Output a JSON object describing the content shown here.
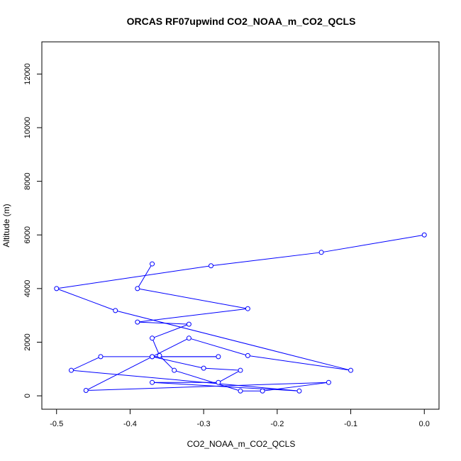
{
  "chart_data": {
    "type": "line",
    "title": "ORCAS RF07upwind CO2_NOAA_m_CO2_QCLS",
    "xlabel": "CO2_NOAA_m_CO2_QCLS",
    "ylabel": "Altitude (m)",
    "xlim": [
      -0.52,
      0.02
    ],
    "ylim": [
      -500,
      13200
    ],
    "xticks": [
      -0.5,
      -0.4,
      -0.3,
      -0.2,
      -0.1,
      0.0
    ],
    "xtick_labels": [
      "-0.5",
      "-0.4",
      "-0.3",
      "-0.2",
      "-0.1",
      "0.0"
    ],
    "yticks": [
      0,
      2000,
      4000,
      6000,
      8000,
      10000,
      12000
    ],
    "ytick_labels": [
      "0",
      "2000",
      "4000",
      "6000",
      "8000",
      "10000",
      "12000"
    ],
    "grid": false,
    "series": [
      {
        "color": "#0000ff",
        "marker": "open-circle",
        "points": [
          [
            -0.37,
            4920
          ],
          [
            -0.39,
            4000
          ],
          [
            -0.24,
            3250
          ],
          [
            -0.39,
            2750
          ],
          [
            -0.32,
            2670
          ],
          [
            -0.37,
            2150
          ],
          [
            -0.36,
            1500
          ],
          [
            -0.34,
            950
          ],
          [
            -0.25,
            180
          ],
          [
            -0.22,
            180
          ],
          [
            -0.13,
            500
          ],
          [
            -0.46,
            200
          ],
          [
            -0.37,
            1460
          ],
          [
            -0.28,
            1460
          ],
          [
            -0.44,
            1460
          ],
          [
            -0.48,
            950
          ],
          [
            -0.17,
            180
          ],
          [
            -0.37,
            500
          ],
          [
            -0.28,
            500
          ],
          [
            -0.25,
            950
          ],
          [
            -0.3,
            1030
          ],
          [
            -0.37,
            1460
          ],
          [
            -0.32,
            2150
          ],
          [
            -0.24,
            1500
          ],
          [
            -0.1,
            950
          ],
          [
            -0.42,
            3180
          ],
          [
            -0.5,
            4000
          ],
          [
            -0.29,
            4850
          ],
          [
            -0.14,
            5350
          ],
          [
            0.0,
            6000
          ]
        ]
      }
    ]
  }
}
